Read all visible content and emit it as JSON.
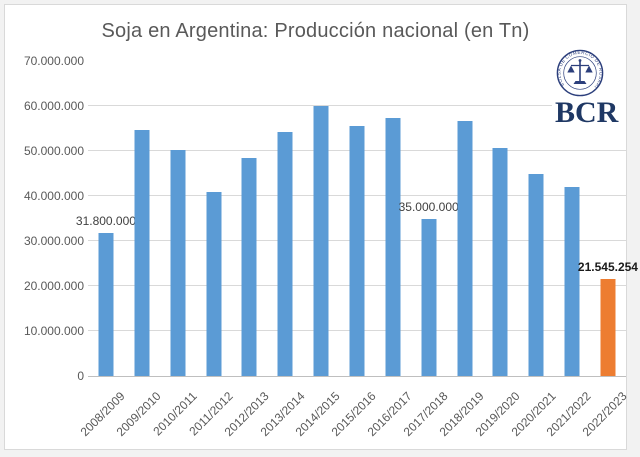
{
  "title": "Soja en Argentina: Producción nacional (en Tn)",
  "logo": {
    "text": "BCR",
    "seal_text": "BOLSA DE COMERCIO DE ROSARIO"
  },
  "colors": {
    "bar": "#5B9BD5",
    "bar_highlight": "#ED7D31",
    "gridline": "#D9D9D9",
    "axis_line": "#BFBFBF",
    "axis_label": "#595959",
    "title_color": "#595959",
    "data_label": "#404040",
    "data_label_bold": "#1A1A1A",
    "logo_navy": "#1F3864",
    "frame_border": "#D9D9D9"
  },
  "chart_data": {
    "type": "bar",
    "title": "Soja en Argentina: Producción nacional (en Tn)",
    "xlabel": "",
    "ylabel": "",
    "grid": true,
    "legend": "none",
    "ylim": [
      0,
      70000000
    ],
    "y_tick_step": 10000000,
    "y_tick_labels": [
      "0",
      "10.000.000",
      "20.000.000",
      "30.000.000",
      "40.000.000",
      "50.000.000",
      "60.000.000",
      "70.000.000"
    ],
    "gridlines_at": [
      10000000,
      20000000,
      30000000,
      40000000,
      50000000,
      60000000
    ],
    "categories": [
      "2008/2009",
      "2009/2010",
      "2010/2011",
      "2011/2012",
      "2012/2013",
      "2013/2014",
      "2014/2015",
      "2015/2016",
      "2016/2017",
      "2017/2018",
      "2018/2019",
      "2019/2020",
      "2020/2021",
      "2021/2022",
      "2022/2023"
    ],
    "values": [
      31800000,
      54700000,
      50200000,
      40900000,
      48400000,
      54200000,
      60000000,
      55500000,
      57400000,
      35000000,
      56600000,
      50700000,
      45000000,
      42000000,
      21545254
    ],
    "highlight_index": 14,
    "data_labels": [
      {
        "index": 0,
        "text": "31.800.000",
        "bold": false
      },
      {
        "index": 9,
        "text": "35.000.000",
        "bold": false
      },
      {
        "index": 14,
        "text": "21.545.254",
        "bold": true
      }
    ]
  }
}
